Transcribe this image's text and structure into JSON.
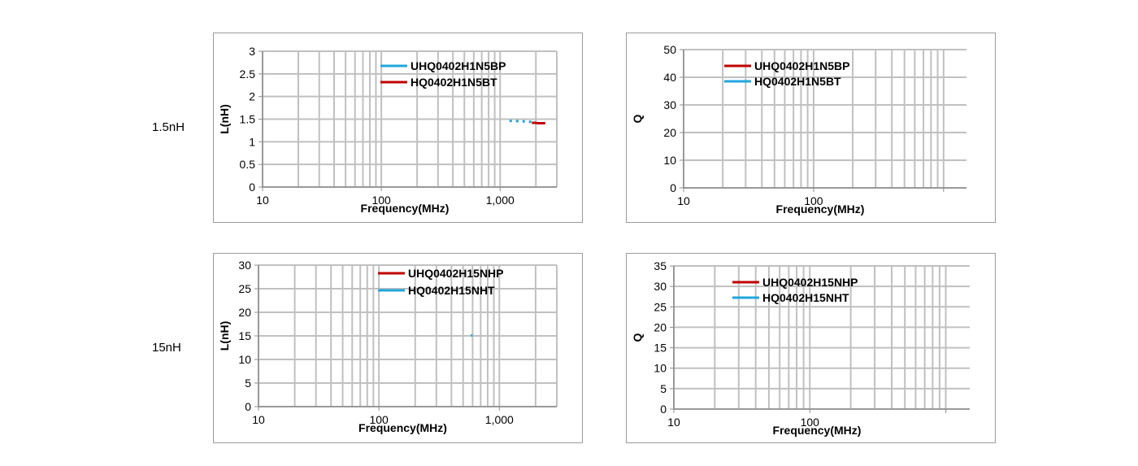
{
  "row_labels": [
    "1.5nH",
    "15nH"
  ],
  "colors": {
    "red": "#c00000",
    "blue": "#1fa7dc",
    "grid": "#c0c0c0",
    "axis": "#8c8c8c"
  },
  "chart_data": [
    {
      "type": "line",
      "xscale": "log",
      "xlim": [
        10,
        3000
      ],
      "ylim": [
        0,
        3
      ],
      "yticks": [
        0,
        0.5,
        1,
        1.5,
        2,
        2.5,
        3
      ],
      "ytick_labels": [
        "0",
        "0.5",
        "1",
        "1.5",
        "2",
        "2.5",
        "3"
      ],
      "xtick_labels": [
        {
          "v": 10,
          "t": "10"
        },
        {
          "v": 100,
          "t": "100"
        },
        {
          "v": 1000,
          "t": "1,000"
        }
      ],
      "xlabel": "Frequency(MHz)",
      "ylabel": "L(nH)",
      "legend": "top-center",
      "series": [
        {
          "name": "UHQ0402H1N5BP",
          "color": "#1fa7dc",
          "style": "dotted",
          "x": [
            1200,
            1350,
            1450,
            1550,
            1650,
            1750,
            1850
          ],
          "y": [
            1.46,
            1.46,
            1.45,
            1.45,
            1.45,
            1.44,
            1.44
          ]
        },
        {
          "name": "HQ0402H1N5BT",
          "color": "#c00000",
          "style": "solid",
          "x": [
            1850,
            1950,
            2100,
            2250,
            2400
          ],
          "y": [
            1.42,
            1.42,
            1.41,
            1.41,
            1.41
          ]
        }
      ]
    },
    {
      "type": "line",
      "xscale": "log",
      "xlim": [
        10,
        1500
      ],
      "ylim": [
        0,
        50
      ],
      "yticks": [
        0,
        10,
        20,
        30,
        40,
        50
      ],
      "ytick_labels": [
        "0",
        "10",
        "20",
        "30",
        "40",
        "50"
      ],
      "xtick_labels": [
        {
          "v": 10,
          "t": "10"
        },
        {
          "v": 100,
          "t": "100"
        }
      ],
      "xlabel": "Frequency(MHz)",
      "ylabel": "Q",
      "legend": "top-center",
      "series": [
        {
          "name": "UHQ0402H1N5BP",
          "color": "#c00000",
          "style": "solid",
          "x": [],
          "y": []
        },
        {
          "name": "HQ0402H1N5BT",
          "color": "#1fa7dc",
          "style": "solid",
          "x": [],
          "y": []
        }
      ]
    },
    {
      "type": "line",
      "xscale": "log",
      "xlim": [
        10,
        3000
      ],
      "ylim": [
        0,
        30
      ],
      "yticks": [
        0,
        5,
        10,
        15,
        20,
        25,
        30
      ],
      "ytick_labels": [
        "0",
        "5",
        "10",
        "15",
        "20",
        "25",
        "30"
      ],
      "xtick_labels": [
        {
          "v": 10,
          "t": "10"
        },
        {
          "v": 100,
          "t": "100"
        },
        {
          "v": 1000,
          "t": "1,000"
        }
      ],
      "xlabel": "Frequency(MHz)",
      "ylabel": "L(nH)",
      "legend": "top-center",
      "series": [
        {
          "name": "UHQ0402H15NHP",
          "color": "#c00000",
          "style": "solid",
          "x": [],
          "y": []
        },
        {
          "name": "HQ0402H15NHT",
          "color": "#1fa7dc",
          "style": "solid",
          "x": [
            580,
            600
          ],
          "y": [
            15.1,
            15.1
          ]
        }
      ]
    },
    {
      "type": "line",
      "xscale": "log",
      "xlim": [
        10,
        1500
      ],
      "ylim": [
        0,
        35
      ],
      "yticks": [
        0,
        5,
        10,
        15,
        20,
        25,
        30,
        35
      ],
      "ytick_labels": [
        "0",
        "5",
        "10",
        "15",
        "20",
        "25",
        "30",
        "35"
      ],
      "xtick_labels": [
        {
          "v": 10,
          "t": "10"
        },
        {
          "v": 100,
          "t": "100"
        }
      ],
      "xlabel": "Frequency(MHz)",
      "ylabel": "Q",
      "legend": "top-center",
      "series": [
        {
          "name": "UHQ0402H15NHP",
          "color": "#c00000",
          "style": "solid",
          "x": [],
          "y": []
        },
        {
          "name": "HQ0402H15NHT",
          "color": "#1fa7dc",
          "style": "solid",
          "x": [],
          "y": []
        }
      ]
    }
  ]
}
